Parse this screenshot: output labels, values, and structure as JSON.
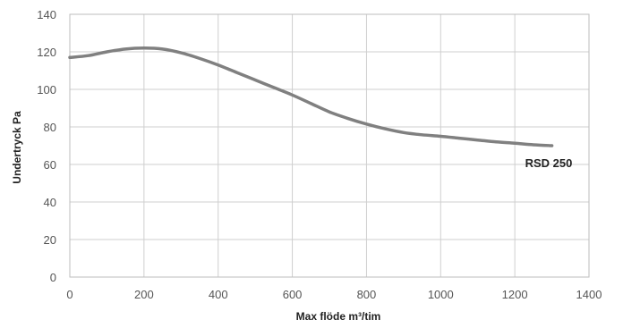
{
  "chart_data": {
    "type": "line",
    "title": "",
    "xlabel": "Max flöde m³/tim",
    "ylabel": "Undertryck Pa",
    "xlim": [
      0,
      1400
    ],
    "ylim": [
      0,
      140
    ],
    "x_ticks": [
      0,
      200,
      400,
      600,
      800,
      1000,
      1200,
      1400
    ],
    "y_ticks": [
      0,
      20,
      40,
      60,
      80,
      100,
      120,
      140
    ],
    "grid": true,
    "series": [
      {
        "name": "RSD 250",
        "color": "#808080",
        "x": [
          0,
          50,
          100,
          150,
          200,
          250,
          300,
          350,
          400,
          450,
          500,
          550,
          600,
          650,
          700,
          750,
          800,
          850,
          900,
          950,
          1000,
          1050,
          1100,
          1150,
          1200,
          1250,
          1300
        ],
        "y": [
          117,
          118,
          120,
          121.5,
          122,
          121.5,
          119.5,
          116.5,
          113,
          109,
          105,
          101,
          97,
          92.5,
          88,
          84.5,
          81.5,
          79,
          77,
          75.8,
          75,
          74,
          73,
          72,
          71.3,
          70.5,
          70
        ]
      }
    ]
  }
}
